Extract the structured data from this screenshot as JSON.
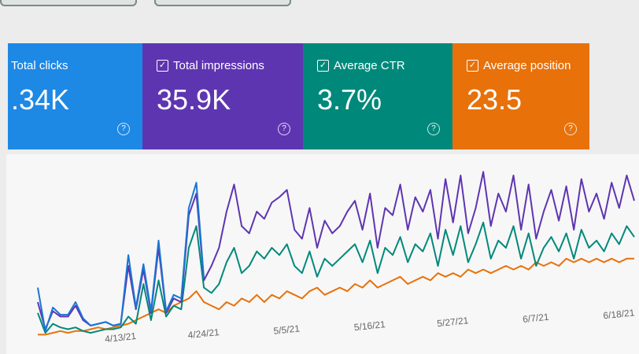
{
  "cards": [
    {
      "label": "Total clicks",
      "value": ".34K",
      "color": "#1e88e5"
    },
    {
      "label": "Total impressions",
      "value": "35.9K",
      "color": "#5e35b1"
    },
    {
      "label": "Average CTR",
      "value": "3.7%",
      "color": "#00897b"
    },
    {
      "label": "Average position",
      "value": "23.5",
      "color": "#e8710a"
    }
  ],
  "chart_data": {
    "type": "line",
    "categories": [
      null,
      null,
      null,
      null,
      null,
      null,
      null,
      null,
      null,
      null,
      null,
      "4/13/21",
      null,
      null,
      null,
      null,
      null,
      null,
      null,
      null,
      null,
      null,
      "4/24/21",
      null,
      null,
      null,
      null,
      null,
      null,
      null,
      null,
      null,
      null,
      "5/5/21",
      null,
      null,
      null,
      null,
      null,
      null,
      null,
      null,
      null,
      null,
      "5/16/21",
      null,
      null,
      null,
      null,
      null,
      null,
      null,
      null,
      null,
      null,
      "5/27/21",
      null,
      null,
      null,
      null,
      null,
      null,
      null,
      null,
      null,
      null,
      "6/7/21",
      null,
      null,
      null,
      null,
      null,
      null,
      null,
      null,
      null,
      null,
      "6/18/21",
      null,
      null
    ],
    "ylim": [
      0,
      100
    ],
    "series": [
      {
        "name": "Total clicks",
        "color": "#1976d2",
        "values": [
          28,
          4,
          17,
          13,
          13,
          20,
          11,
          7,
          8,
          9,
          7,
          8,
          46,
          17,
          41,
          15,
          54,
          15,
          24,
          22,
          72,
          86,
          33,
          null,
          null,
          null,
          null,
          null,
          null,
          null,
          null,
          null,
          null,
          null,
          null,
          null,
          null,
          null,
          null,
          null,
          null,
          null,
          null,
          null,
          null,
          null,
          null,
          null,
          null,
          null,
          null,
          null,
          null,
          null,
          null,
          null,
          null,
          null,
          null,
          null,
          null,
          null,
          null,
          null,
          null,
          null,
          null,
          null,
          null,
          null,
          null,
          null,
          null,
          null,
          null,
          null,
          null,
          null,
          null,
          null
        ]
      },
      {
        "name": "Total impressions",
        "color": "#5e35b1",
        "values": [
          20,
          5,
          15,
          12,
          12,
          18,
          10,
          7,
          8,
          9,
          7,
          8,
          40,
          16,
          38,
          14,
          50,
          14,
          22,
          20,
          68,
          80,
          32,
          40,
          50,
          70,
          85,
          62,
          58,
          70,
          66,
          75,
          78,
          82,
          60,
          55,
          72,
          50,
          65,
          58,
          62,
          70,
          76,
          60,
          80,
          50,
          72,
          68,
          85,
          60,
          78,
          70,
          82,
          55,
          88,
          64,
          90,
          58,
          72,
          92,
          62,
          80,
          70,
          90,
          60,
          85,
          55,
          70,
          82,
          65,
          84,
          60,
          88,
          70,
          80,
          66,
          86,
          72,
          90,
          76
        ]
      },
      {
        "name": "Average CTR",
        "color": "#00897b",
        "values": [
          14,
          3,
          8,
          6,
          5,
          6,
          4,
          3,
          4,
          5,
          5,
          6,
          12,
          8,
          30,
          10,
          32,
          12,
          18,
          16,
          50,
          62,
          28,
          25,
          30,
          42,
          50,
          36,
          40,
          48,
          44,
          50,
          46,
          52,
          40,
          36,
          48,
          34,
          44,
          40,
          44,
          48,
          52,
          42,
          54,
          36,
          50,
          46,
          56,
          42,
          52,
          48,
          58,
          40,
          60,
          46,
          62,
          42,
          52,
          64,
          44,
          54,
          50,
          62,
          44,
          58,
          40,
          50,
          56,
          48,
          58,
          44,
          60,
          50,
          54,
          48,
          58,
          52,
          62,
          56
        ]
      },
      {
        "name": "Average position",
        "color": "#e8710a",
        "values": [
          2,
          2,
          3,
          4,
          3,
          4,
          4,
          5,
          6,
          5,
          6,
          7,
          8,
          10,
          12,
          14,
          16,
          14,
          18,
          20,
          22,
          26,
          20,
          18,
          16,
          20,
          18,
          22,
          20,
          24,
          20,
          24,
          22,
          26,
          24,
          22,
          26,
          28,
          24,
          26,
          28,
          26,
          30,
          28,
          32,
          28,
          30,
          32,
          34,
          30,
          32,
          34,
          32,
          36,
          34,
          36,
          34,
          38,
          36,
          38,
          36,
          38,
          40,
          38,
          40,
          38,
          42,
          40,
          42,
          40,
          44,
          42,
          44,
          42,
          44,
          42,
          44,
          42,
          44,
          44
        ]
      }
    ]
  }
}
